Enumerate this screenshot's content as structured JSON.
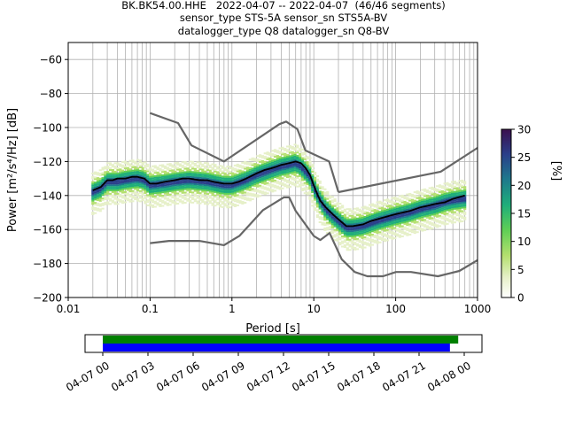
{
  "title": {
    "line1": "BK.BK54.00.HHE   2022-04-07 -- 2022-04-07  (46/46 segments)",
    "line2": "sensor_type STS-5A sensor_sn STS5A-BV",
    "line3": "datalogger_type Q8 datalogger_sn Q8-BV"
  },
  "chart_data": [
    {
      "type": "heatmap",
      "xlabel": "Period [s]",
      "ylabel": "Power [m²/s⁴/Hz] [dB]",
      "x_scale": "log",
      "xlim": [
        0.01,
        1000
      ],
      "ylim": [
        -200,
        -50
      ],
      "x_ticks": [
        0.01,
        0.1,
        1,
        10,
        100,
        1000
      ],
      "x_tick_labels": [
        "0.01",
        "0.1",
        "1",
        "10",
        "100",
        "1000"
      ],
      "y_ticks": [
        -200,
        -180,
        -160,
        -140,
        -120,
        -100,
        -80,
        -60
      ],
      "y_tick_labels": [
        "−200",
        "−180",
        "−160",
        "−140",
        "−120",
        "−100",
        "−80",
        "−60"
      ],
      "grid": true,
      "colorbar": {
        "label": "[%]",
        "range": [
          0,
          30
        ],
        "ticks": [
          0,
          5,
          10,
          15,
          20,
          25,
          30
        ],
        "tick_labels": [
          "0",
          "5",
          "10",
          "15",
          "20",
          "25",
          "30"
        ],
        "colormap": "pqlx",
        "colors": [
          "#ffffff",
          "#e6f0c8",
          "#b4df6e",
          "#5fcf55",
          "#1fae7a",
          "#1e7a8c",
          "#2a3f8a",
          "#3b0f4e"
        ]
      },
      "density_band": {
        "center_mean": [
          [
            0.02,
            -137
          ],
          [
            0.025,
            -135
          ],
          [
            0.03,
            -131
          ],
          [
            0.04,
            -131
          ],
          [
            0.05,
            -130
          ],
          [
            0.07,
            -129
          ],
          [
            0.085,
            -130
          ],
          [
            0.1,
            -133
          ],
          [
            0.15,
            -132
          ],
          [
            0.2,
            -131
          ],
          [
            0.3,
            -130
          ],
          [
            0.5,
            -131
          ],
          [
            0.8,
            -133
          ],
          [
            1.0,
            -133
          ],
          [
            1.5,
            -130
          ],
          [
            2,
            -127
          ],
          [
            3,
            -124
          ],
          [
            4,
            -122
          ],
          [
            5,
            -121
          ],
          [
            6,
            -120
          ],
          [
            7,
            -122
          ],
          [
            9,
            -128
          ],
          [
            10,
            -134
          ],
          [
            12,
            -142
          ],
          [
            14,
            -147
          ],
          [
            17,
            -151
          ],
          [
            20,
            -154
          ],
          [
            25,
            -158
          ],
          [
            30,
            -158
          ],
          [
            40,
            -157
          ],
          [
            60,
            -154
          ],
          [
            100,
            -151
          ],
          [
            150,
            -149
          ],
          [
            200,
            -147
          ],
          [
            300,
            -145
          ],
          [
            400,
            -143
          ],
          [
            500,
            -142
          ],
          [
            700,
            -141
          ]
        ]
      },
      "series": [
        {
          "role": "mean",
          "color": "#000000",
          "x": [
            0.02,
            0.025,
            0.03,
            0.035,
            0.04,
            0.05,
            0.06,
            0.07,
            0.085,
            0.1,
            0.12,
            0.15,
            0.2,
            0.25,
            0.3,
            0.4,
            0.5,
            0.6,
            0.8,
            1.0,
            1.2,
            1.5,
            2,
            2.5,
            3,
            3.5,
            4,
            5,
            6,
            7,
            8,
            9,
            10,
            11,
            12,
            14,
            17,
            20,
            25,
            30,
            40,
            50,
            70,
            100,
            150,
            200,
            250,
            300,
            400,
            500,
            700
          ],
          "y": [
            -137,
            -135,
            -131,
            -131,
            -130,
            -130,
            -129,
            -129,
            -130,
            -133,
            -133,
            -132,
            -131,
            -130,
            -130,
            -131,
            -131,
            -132,
            -133,
            -133,
            -132,
            -130,
            -127,
            -125,
            -124,
            -123,
            -122,
            -121,
            -120,
            -121,
            -124,
            -128,
            -134,
            -139,
            -143,
            -147,
            -151,
            -154,
            -158,
            -158,
            -157,
            -155,
            -153,
            -151,
            -149,
            -147,
            -146,
            -145,
            -144,
            -142,
            -140
          ]
        },
        {
          "role": "NHNM",
          "color": "#666666",
          "x": [
            0.1,
            0.22,
            0.32,
            0.8,
            3.8,
            4.6,
            6.3,
            7.9,
            15.4,
            20
          ],
          "y": [
            -91.5,
            -97.4,
            -110.5,
            -120,
            -98,
            -96.5,
            -101,
            -113.5,
            -120,
            -138
          ]
        },
        {
          "role": "NHNM-long",
          "color": "#666666",
          "x": [
            20,
            354.8,
            1000
          ],
          "y": [
            -138,
            -126,
            -112
          ]
        },
        {
          "role": "NLNM",
          "color": "#666666",
          "x": [
            0.1,
            0.17,
            0.4,
            0.8,
            1.24,
            2.4,
            4.3,
            5,
            6,
            10,
            12,
            15.6,
            21.9,
            31.6,
            45,
            70,
            101,
            154,
            328,
            600,
            1000
          ],
          "y": [
            -168,
            -166.7,
            -166.7,
            -169.2,
            -163.7,
            -148.6,
            -141.1,
            -141.1,
            -149,
            -163.8,
            -166.2,
            -162.1,
            -177.5,
            -185,
            -187.5,
            -187.5,
            -185,
            -185,
            -187.5,
            -184.4,
            -178
          ]
        }
      ]
    },
    {
      "type": "bar",
      "orientation": "horizontal",
      "xlim": [
        "04-07 00",
        "04-08 00"
      ],
      "x_tick_labels": [
        "04-07 00",
        "04-07 03",
        "04-07 06",
        "04-07 09",
        "04-07 12",
        "04-07 15",
        "04-07 18",
        "04-07 21",
        "04-08 00"
      ],
      "series": [
        {
          "role": "data-coverage",
          "color": "#008000",
          "start_hours": 0.0,
          "end_hours": 23.6
        },
        {
          "role": "psd-coverage",
          "color": "#0000ff",
          "start_hours": 0.0,
          "end_hours": 23.05
        }
      ],
      "grid": false
    }
  ]
}
